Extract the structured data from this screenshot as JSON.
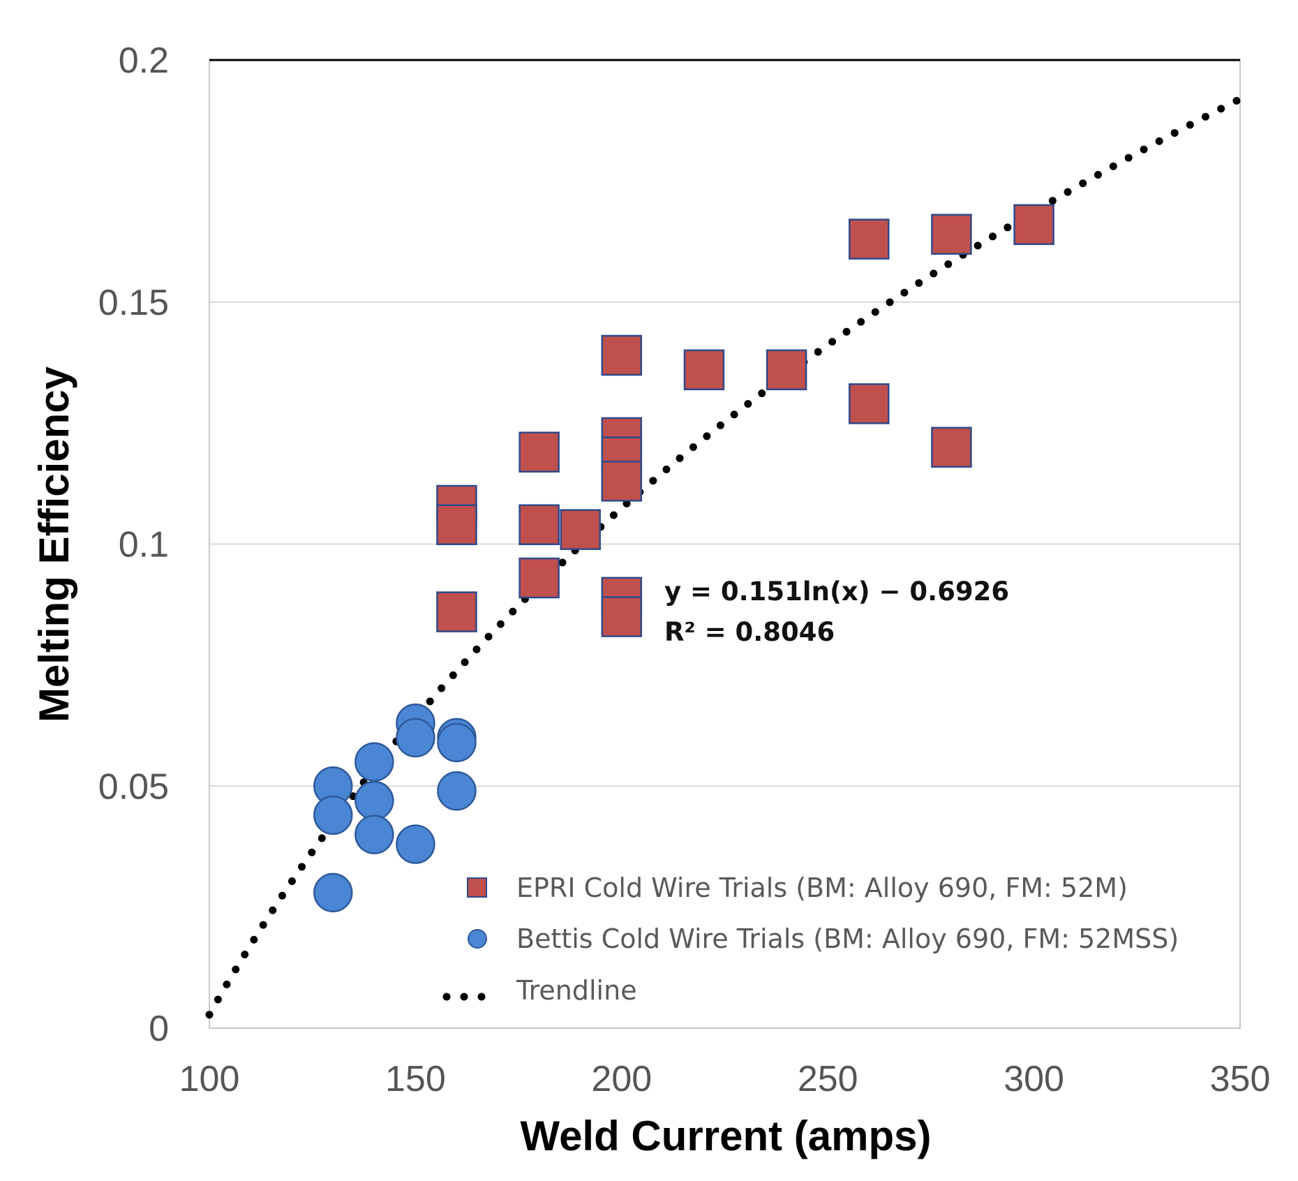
{
  "chart_data": {
    "type": "scatter",
    "xlabel": "Weld Current (amps)",
    "ylabel": "Melting Efficiency",
    "xlim": [
      100,
      350
    ],
    "ylim": [
      0,
      0.2
    ],
    "x_ticks": [
      "100",
      "150",
      "200",
      "250",
      "300",
      "350"
    ],
    "x_tick_values": [
      100,
      150,
      200,
      250,
      300,
      350
    ],
    "y_ticks": [
      "0",
      "0.05",
      "0.1",
      "0.15",
      "0.2"
    ],
    "y_tick_values": [
      0,
      0.05,
      0.1,
      0.15,
      0.2
    ],
    "grid": "horizontal",
    "legend_position": "bottom-right",
    "series": [
      {
        "name": "EPRI Cold Wire Trials (BM: Alloy 690, FM: 52M)",
        "marker": "square",
        "color": "#c0504d",
        "edge_color": "#2f4a8a",
        "points": [
          [
            160,
            0.108
          ],
          [
            160,
            0.104
          ],
          [
            160,
            0.086
          ],
          [
            180,
            0.119
          ],
          [
            180,
            0.104
          ],
          [
            180,
            0.093
          ],
          [
            190,
            0.103
          ],
          [
            200,
            0.139
          ],
          [
            200,
            0.122
          ],
          [
            200,
            0.118
          ],
          [
            200,
            0.113
          ],
          [
            200,
            0.089
          ],
          [
            200,
            0.085
          ],
          [
            220,
            0.136
          ],
          [
            240,
            0.136
          ],
          [
            260,
            0.163
          ],
          [
            260,
            0.129
          ],
          [
            280,
            0.164
          ],
          [
            280,
            0.12
          ],
          [
            300,
            0.166
          ]
        ]
      },
      {
        "name": "Bettis Cold Wire Trials (BM: Alloy 690, FM: 52MSS)",
        "marker": "circle",
        "color": "#4a86d4",
        "edge_color": "#2f5a9a",
        "points": [
          [
            130,
            0.05
          ],
          [
            130,
            0.044
          ],
          [
            130,
            0.028
          ],
          [
            140,
            0.055
          ],
          [
            140,
            0.047
          ],
          [
            140,
            0.04
          ],
          [
            150,
            0.063
          ],
          [
            150,
            0.06
          ],
          [
            150,
            0.038
          ],
          [
            160,
            0.06
          ],
          [
            160,
            0.059
          ],
          [
            160,
            0.049
          ]
        ]
      }
    ],
    "trendline": {
      "name": "Trendline",
      "color": "#000000",
      "style": "dotted",
      "a": 0.151,
      "b": -0.6926,
      "equation": "y = 0.151ln(x) − 0.6926",
      "r2_label": "R² = 0.8046"
    }
  }
}
